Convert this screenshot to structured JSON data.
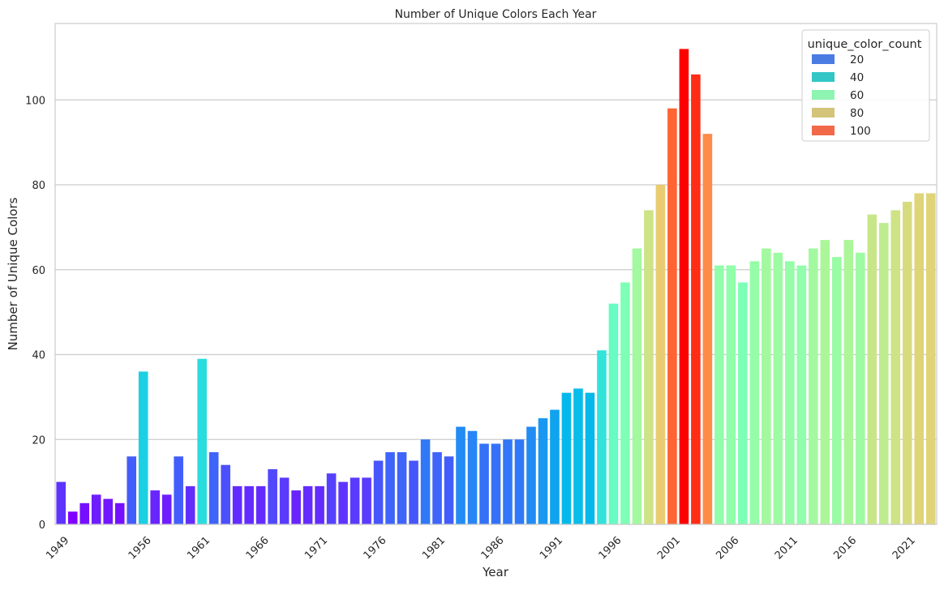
{
  "chart_data": {
    "type": "bar",
    "title": "Number of Unique Colors Each Year",
    "xlabel": "Year",
    "ylabel": "Number of Unique Colors",
    "ylim": [
      0,
      118
    ],
    "yticks": [
      0,
      20,
      40,
      60,
      80,
      100
    ],
    "xtick_labels": [
      "1949",
      "1956",
      "1961",
      "1966",
      "1971",
      "1976",
      "1981",
      "1986",
      "1991",
      "1996",
      "2001",
      "2006",
      "2011",
      "2016",
      "2021"
    ],
    "grid": "horizontal",
    "legend": {
      "title": "unique_color_count",
      "placement": "top-right",
      "entries": [
        {
          "label": "20",
          "color": "#4a7be3"
        },
        {
          "label": "40",
          "color": "#33c6c6"
        },
        {
          "label": "60",
          "color": "#8ef4b2"
        },
        {
          "label": "80",
          "color": "#d3c47a"
        },
        {
          "label": "100",
          "color": "#f2694a"
        }
      ]
    },
    "categories": [
      "1949",
      "1950",
      "1951",
      "1952",
      "1953",
      "1954",
      "1955",
      "1956",
      "1957",
      "1958",
      "1959",
      "1960",
      "1961",
      "1962",
      "1963",
      "1964",
      "1965",
      "1966",
      "1967",
      "1968",
      "1969",
      "1970",
      "1971",
      "1972",
      "1973",
      "1974",
      "1975",
      "1976",
      "1977",
      "1978",
      "1979",
      "1980",
      "1981",
      "1982",
      "1983",
      "1984",
      "1985",
      "1986",
      "1987",
      "1988",
      "1989",
      "1990",
      "1991",
      "1992",
      "1993",
      "1994",
      "1995",
      "1996",
      "1997",
      "1998",
      "1999",
      "2000",
      "2001",
      "2002",
      "2003",
      "2004",
      "2005",
      "2006",
      "2007",
      "2008",
      "2009",
      "2010",
      "2011",
      "2012",
      "2013",
      "2014",
      "2015",
      "2016",
      "2017",
      "2018",
      "2019",
      "2020",
      "2021",
      "2022",
      "2023"
    ],
    "values": [
      10,
      3,
      5,
      7,
      6,
      5,
      16,
      36,
      8,
      7,
      16,
      9,
      39,
      17,
      14,
      9,
      9,
      9,
      13,
      11,
      8,
      9,
      9,
      12,
      10,
      11,
      11,
      15,
      17,
      17,
      15,
      20,
      17,
      16,
      23,
      22,
      19,
      19,
      20,
      20,
      23,
      25,
      27,
      31,
      32,
      31,
      41,
      52,
      57,
      65,
      74,
      80,
      98,
      112,
      106,
      92,
      61,
      61,
      57,
      62,
      65,
      64,
      62,
      61,
      65,
      67,
      63,
      67,
      64,
      73,
      71,
      74,
      76,
      78,
      78
    ],
    "colormap": "rainbow"
  }
}
